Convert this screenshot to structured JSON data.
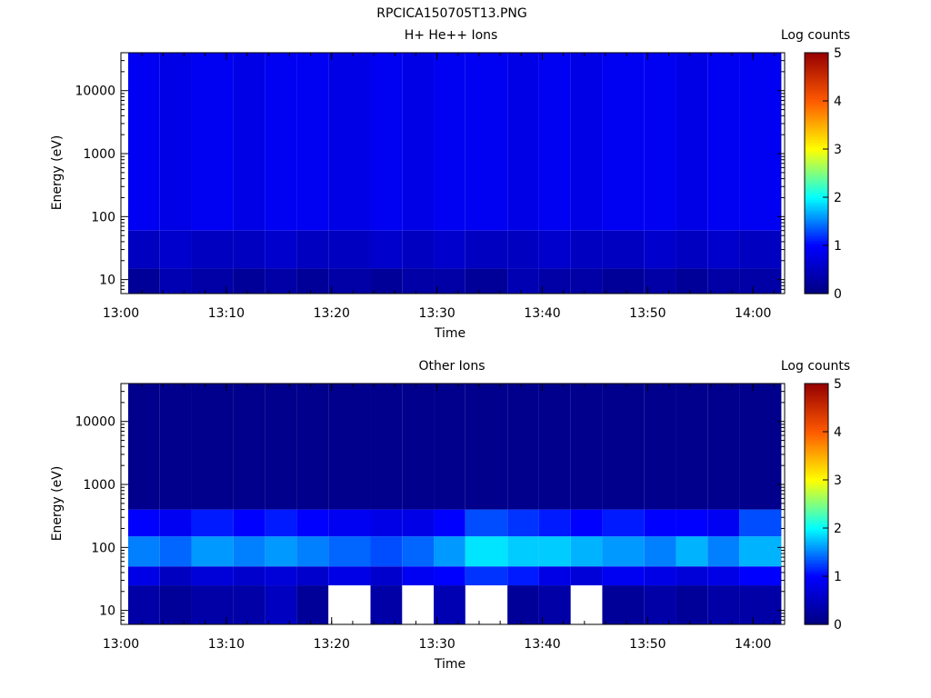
{
  "figure": {
    "title": "RPCICA150705T13.PNG"
  },
  "chart_data": [
    {
      "type": "heatmap",
      "title": "H+ He++ Ions",
      "xlabel": "Time",
      "ylabel": "Energy (eV)",
      "y_scale": "log",
      "ylim": [
        6,
        40000
      ],
      "x_ticks": [
        "13:00",
        "13:10",
        "13:20",
        "13:30",
        "13:40",
        "13:50",
        "14:00"
      ],
      "y_ticks": [
        "10",
        "100",
        "1000",
        "10000"
      ],
      "time_start": "13:00",
      "time_end": "14:03",
      "colorbar": {
        "label": "Log counts",
        "min": 0,
        "max": 5,
        "ticks": [
          "0",
          "1",
          "2",
          "3",
          "4",
          "5"
        ]
      },
      "column_times": [
        "13:00",
        "13:03",
        "13:06",
        "13:10",
        "13:13",
        "13:16",
        "13:19",
        "13:23",
        "13:26",
        "13:29",
        "13:32",
        "13:36",
        "13:39",
        "13:42",
        "13:45",
        "13:49",
        "13:52",
        "13:55",
        "13:58"
      ],
      "energy_bands_eV": [
        {
          "from": 6,
          "to": 15,
          "values": [
            0.2,
            0.4,
            0.3,
            0.2,
            0.3,
            0.2,
            0.3,
            0.2,
            0.3,
            0.3,
            0.2,
            0.4,
            0.3,
            0.3,
            0.2,
            0.3,
            0.2,
            0.3,
            0.3
          ]
        },
        {
          "from": 15,
          "to": 60,
          "values": [
            0.5,
            0.6,
            0.5,
            0.5,
            0.6,
            0.5,
            0.5,
            0.6,
            0.5,
            0.6,
            0.5,
            0.5,
            0.6,
            0.5,
            0.5,
            0.6,
            0.5,
            0.6,
            0.5
          ]
        },
        {
          "from": 60,
          "to": 40000,
          "values": [
            0.9,
            0.8,
            0.9,
            0.8,
            0.9,
            0.9,
            0.8,
            0.9,
            0.8,
            0.9,
            0.9,
            0.8,
            0.9,
            0.8,
            0.9,
            0.9,
            0.8,
            0.9,
            0.9
          ]
        }
      ]
    },
    {
      "type": "heatmap",
      "title": "Other Ions",
      "xlabel": "Time",
      "ylabel": "Energy (eV)",
      "y_scale": "log",
      "ylim": [
        6,
        40000
      ],
      "x_ticks": [
        "13:00",
        "13:10",
        "13:20",
        "13:30",
        "13:40",
        "13:50",
        "14:00"
      ],
      "y_ticks": [
        "10",
        "100",
        "1000",
        "10000"
      ],
      "time_start": "13:00",
      "time_end": "14:03",
      "colorbar": {
        "label": "Log counts",
        "min": 0,
        "max": 5,
        "ticks": [
          "0",
          "1",
          "2",
          "3",
          "4",
          "5"
        ]
      },
      "column_times": [
        "13:00",
        "13:03",
        "13:06",
        "13:10",
        "13:13",
        "13:16",
        "13:19",
        "13:23",
        "13:26",
        "13:29",
        "13:32",
        "13:36",
        "13:39",
        "13:42",
        "13:45",
        "13:49",
        "13:52",
        "13:55",
        "13:58"
      ],
      "energy_bands_eV": [
        {
          "from": 6,
          "to": 25,
          "values": [
            0.3,
            0.2,
            0.3,
            0.3,
            0.5,
            0.2,
            null,
            0.3,
            null,
            0.4,
            null,
            0.2,
            0.3,
            null,
            0.2,
            0.3,
            0.2,
            0.3,
            0.3
          ]
        },
        {
          "from": 25,
          "to": 50,
          "values": [
            0.8,
            0.5,
            0.7,
            0.6,
            0.7,
            0.6,
            0.8,
            0.6,
            0.9,
            1.0,
            1.2,
            1.1,
            0.8,
            0.7,
            0.9,
            0.8,
            0.7,
            0.8,
            1.0
          ]
        },
        {
          "from": 50,
          "to": 150,
          "values": [
            1.5,
            1.4,
            1.6,
            1.5,
            1.6,
            1.5,
            1.4,
            1.3,
            1.4,
            1.6,
            1.9,
            1.8,
            1.8,
            1.7,
            1.6,
            1.5,
            1.7,
            1.5,
            1.7
          ]
        },
        {
          "from": 150,
          "to": 400,
          "values": [
            1.0,
            0.9,
            1.1,
            1.0,
            1.1,
            1.0,
            0.9,
            0.8,
            0.8,
            1.0,
            1.3,
            1.2,
            1.1,
            1.0,
            1.1,
            1.0,
            1.0,
            0.9,
            1.3
          ]
        },
        {
          "from": 400,
          "to": 40000,
          "values": [
            0.1,
            0.1,
            0.1,
            0.1,
            0.1,
            0.1,
            0.1,
            0.1,
            0.1,
            0.1,
            0.1,
            0.1,
            0.1,
            0.1,
            0.1,
            0.1,
            0.1,
            0.1,
            0.1
          ]
        }
      ]
    }
  ]
}
